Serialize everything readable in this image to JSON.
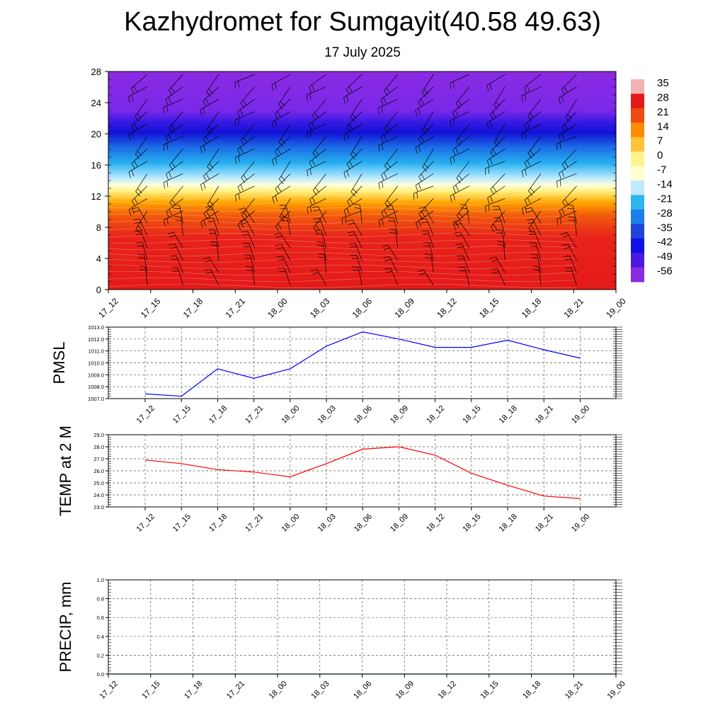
{
  "title": "Kazhydromet for Sumgayit(40.58 49.63)",
  "subtitle": "17 July 2025",
  "chart_data": [
    {
      "type": "heatmap",
      "title": "",
      "x_ticks": [
        "17_12",
        "17_15",
        "17_18",
        "17_21",
        "18_00",
        "18_03",
        "18_06",
        "18_09",
        "18_12",
        "18_15",
        "18_18",
        "18_21",
        "19_00"
      ],
      "y_ticks": [
        0,
        4,
        8,
        12,
        16,
        20,
        24,
        28
      ],
      "ylim": [
        0,
        28
      ],
      "colorbar_labels": [
        35,
        28,
        21,
        14,
        7,
        0,
        -7,
        -14,
        -21,
        -28,
        -35,
        -42,
        -49,
        -56
      ],
      "colorbar_colors": [
        "#f2b3b3",
        "#e41a1a",
        "#f04a10",
        "#ff8c00",
        "#ffc23a",
        "#fff38f",
        "#ffffd0",
        "#bfe9ff",
        "#2fb6ef",
        "#1c7fea",
        "#2243d9",
        "#1010e6",
        "#4b1ae0",
        "#8a2be2"
      ],
      "overlay": "wind barbs"
    },
    {
      "type": "line",
      "ylabel": "PMSL",
      "x": [
        "17_12",
        "17_15",
        "17_18",
        "17_21",
        "18_00",
        "18_03",
        "18_06",
        "18_09",
        "18_12",
        "18_15",
        "18_18",
        "18_21",
        "19_00"
      ],
      "y_ticks": [
        "1007.0",
        "1008.0",
        "1009.0",
        "1010.0",
        "1011.0",
        "1012.0",
        "1013.0"
      ],
      "ylim": [
        1007,
        1013
      ],
      "series": [
        {
          "color": "#0000ff",
          "values": [
            1007.4,
            1007.2,
            1009.5,
            1008.7,
            1009.5,
            1011.4,
            1012.6,
            1012.0,
            1011.3,
            1011.3,
            1011.9,
            1011.1,
            1010.4
          ]
        }
      ],
      "grid": true
    },
    {
      "type": "line",
      "ylabel": "TEMP at 2 M",
      "x": [
        "17_12",
        "17_15",
        "17_18",
        "17_21",
        "18_00",
        "18_03",
        "18_06",
        "18_09",
        "18_12",
        "18_15",
        "18_18",
        "18_21",
        "19_00"
      ],
      "y_ticks": [
        "23.0",
        "24.0",
        "25.0",
        "26.0",
        "27.0",
        "28.0",
        "29.0"
      ],
      "ylim": [
        23,
        29
      ],
      "series": [
        {
          "color": "#ff0000",
          "values": [
            26.9,
            26.6,
            26.1,
            25.9,
            25.5,
            26.6,
            27.8,
            28.0,
            27.3,
            25.8,
            24.8,
            23.9,
            23.7
          ]
        }
      ],
      "grid": true
    },
    {
      "type": "line",
      "ylabel": "PRECIP, mm",
      "x_ticks": [
        "17_12",
        "17_15",
        "17_18",
        "17_21",
        "18_00",
        "18_03",
        "18_06",
        "18_09",
        "18_12",
        "18_15",
        "18_18",
        "18_21",
        "19_00"
      ],
      "y_ticks": [
        "0.0",
        "0.2",
        "0.4",
        "0.6",
        "0.8",
        "1.0"
      ],
      "ylim": [
        0,
        1
      ],
      "series": [
        {
          "color": "#006400",
          "values": [
            0,
            0,
            0,
            0,
            0,
            0,
            0,
            0,
            0,
            0,
            0,
            0,
            0
          ]
        }
      ],
      "grid": true
    }
  ]
}
